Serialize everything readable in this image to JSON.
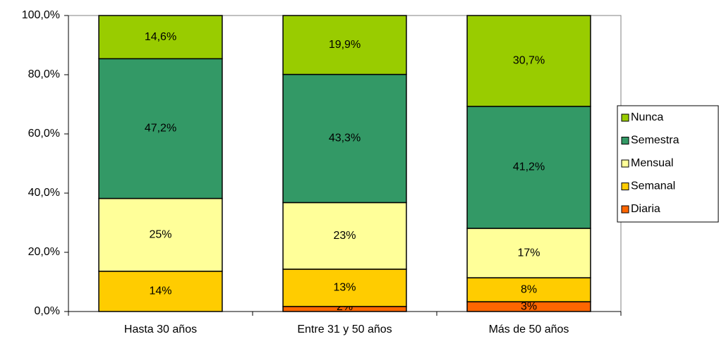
{
  "chart_data": {
    "type": "stacked_bar",
    "categories": [
      "Hasta 30 años",
      "Entre 31 y 50 años",
      "Más de 50 años"
    ],
    "series": [
      {
        "name": "Diaria",
        "color": "#ff6600",
        "values": [
          0,
          1.7,
          3.3
        ],
        "value_labels": [
          null,
          "2%",
          "3%"
        ]
      },
      {
        "name": "Semanal",
        "color": "#ffcc00",
        "values": [
          13.6,
          12.6,
          8.1
        ],
        "value_labels": [
          "14%",
          "13%",
          "8%"
        ]
      },
      {
        "name": "Mensual",
        "color": "#ffff99",
        "values": [
          24.6,
          22.5,
          16.7
        ],
        "value_labels": [
          "25%",
          "23%",
          "17%"
        ]
      },
      {
        "name": "Semestra",
        "color": "#339966",
        "values": [
          47.2,
          43.3,
          41.2
        ],
        "value_labels": [
          "47,2%",
          "43,3%",
          "41,2%"
        ]
      },
      {
        "name": "Nunca",
        "color": "#99cc00",
        "values": [
          14.6,
          19.9,
          30.7
        ],
        "value_labels": [
          "14,6%",
          "19,9%",
          "30,7%"
        ]
      }
    ],
    "ylim": [
      0,
      100
    ],
    "yticks": [
      {
        "value": 0,
        "label": "0,0%"
      },
      {
        "value": 20,
        "label": "20,0%"
      },
      {
        "value": 40,
        "label": "40,0%"
      },
      {
        "value": 60,
        "label": "60,0%"
      },
      {
        "value": 80,
        "label": "80,0%"
      },
      {
        "value": 100,
        "label": "100,0%"
      }
    ],
    "legend": "right"
  }
}
